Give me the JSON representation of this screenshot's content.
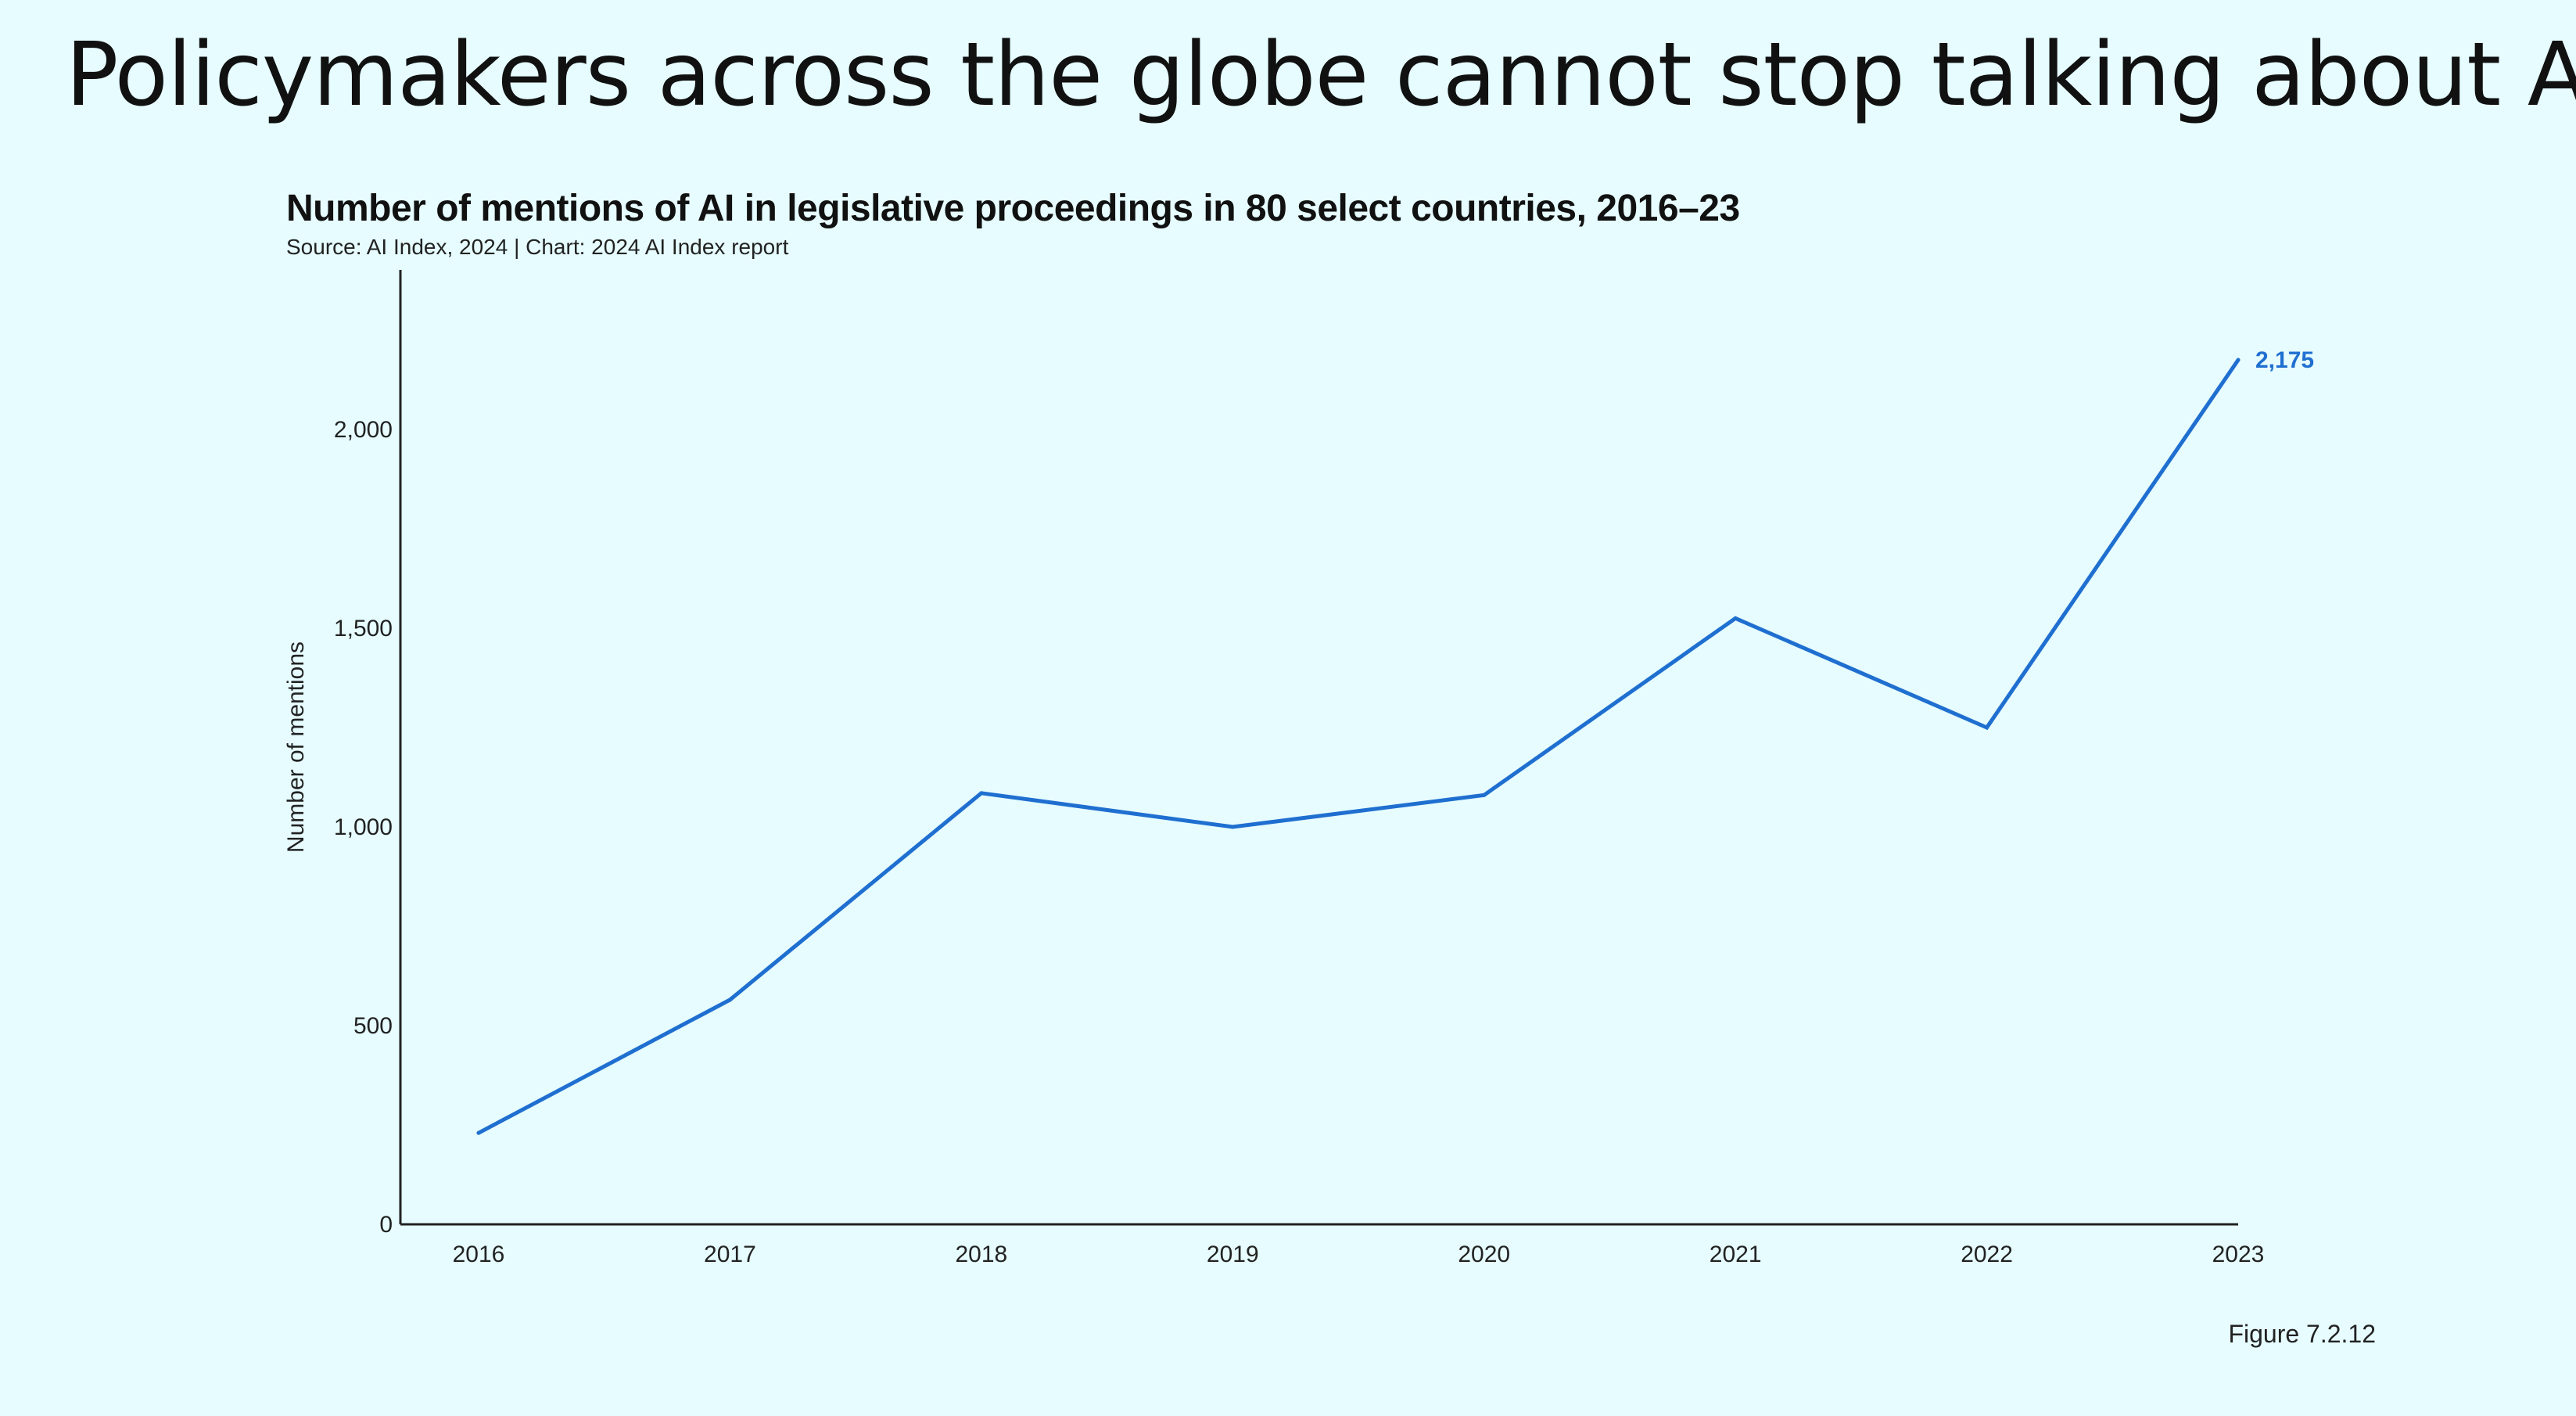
{
  "slide": {
    "title": "Policymakers across the globe cannot stop talking about AI",
    "figure_label": "Figure 7.2.12"
  },
  "chart_data": {
    "type": "line",
    "title": "Number of mentions of AI in legislative proceedings in 80 select countries, 2016–23",
    "subtitle": "Source: AI Index, 2024 | Chart: 2024 AI Index report",
    "xlabel": "",
    "ylabel": "Number of mentions",
    "categories": [
      "2016",
      "2017",
      "2018",
      "2019",
      "2020",
      "2021",
      "2022",
      "2023"
    ],
    "series": [
      {
        "values": [
          230,
          565,
          1085,
          1000,
          1080,
          1525,
          1250,
          2175
        ],
        "color": "#1f6fd0"
      }
    ],
    "ylim": [
      0,
      2400
    ],
    "yticks": [
      0,
      500,
      1000,
      1500,
      2000
    ],
    "ytick_labels": [
      "0",
      "500",
      "1,000",
      "1,500",
      "2,000"
    ],
    "annotations": [
      {
        "category": "2023",
        "value": 2175,
        "text": "2,175",
        "color": "#1f6fd0"
      }
    ],
    "grid": false,
    "axis_color": "#222222"
  }
}
